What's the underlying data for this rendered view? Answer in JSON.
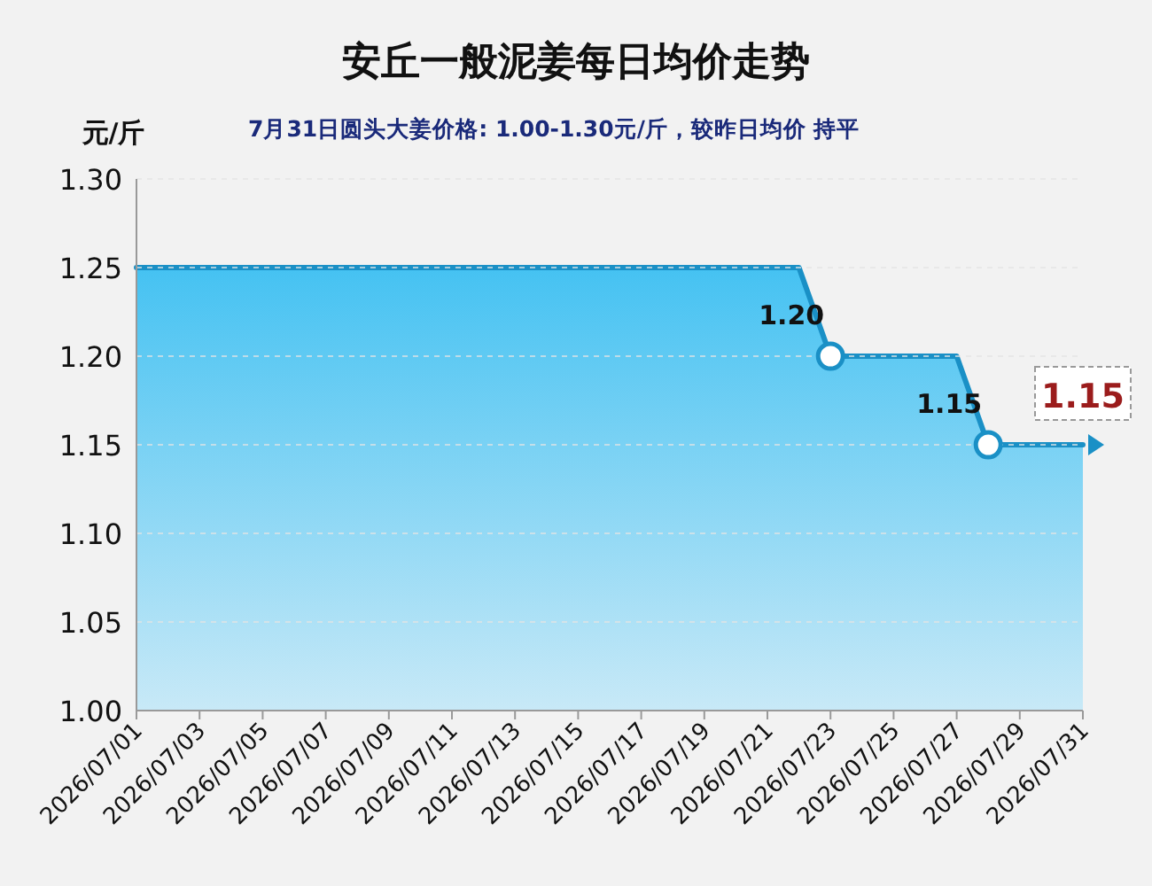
{
  "chart_data": {
    "type": "area",
    "title": "安丘一般泥姜每日均价走势",
    "subtitle": "7月31日圆头大姜价格: 1.00-1.30元/斤，较昨日均价 持平",
    "ylabel": "元/斤",
    "x": [
      "2026-07-01",
      "2026-07-02",
      "2026-07-03",
      "2026-07-04",
      "2026-07-05",
      "2026-07-06",
      "2026-07-07",
      "2026-07-08",
      "2026-07-09",
      "2026-07-10",
      "2026-07-11",
      "2026-07-12",
      "2026-07-13",
      "2026-07-14",
      "2026-07-15",
      "2026-07-16",
      "2026-07-17",
      "2026-07-18",
      "2026-07-19",
      "2026-07-20",
      "2026-07-21",
      "2026-07-22",
      "2026-07-23",
      "2026-07-24",
      "2026-07-25",
      "2026-07-26",
      "2026-07-27",
      "2026-07-28",
      "2026-07-29",
      "2026-07-30",
      "2026-07-31"
    ],
    "series": [
      {
        "color": "#1a90c6",
        "marker": "none",
        "line_style": "solid",
        "values": [
          1.25,
          1.25,
          1.25,
          1.25,
          1.25,
          1.25,
          1.25,
          1.25,
          1.25,
          1.25,
          1.25,
          1.25,
          1.25,
          1.25,
          1.25,
          1.25,
          1.25,
          1.25,
          1.25,
          1.25,
          1.25,
          1.25,
          1.2,
          1.2,
          1.2,
          1.2,
          1.2,
          1.15,
          1.15,
          1.15,
          1.15
        ]
      },
      {
        "type": "scatter",
        "color": "#1a90c6",
        "marker": "circle",
        "x": [
          "2026-07-23",
          "2026-07-28"
        ],
        "values": [
          1.2,
          1.15
        ],
        "value_labels": [
          "1.20",
          "1.15"
        ]
      }
    ],
    "annotations": [
      {
        "text": "1.15",
        "x": "2026-07-31",
        "y": 1.15
      }
    ],
    "grid": "y",
    "xlim": [
      "2026-07-01",
      "2026-07-31"
    ],
    "xticks": [
      {
        "value": "2026-07-01",
        "label": "2026/07/01"
      },
      {
        "value": "2026-07-03",
        "label": "2026/07/03"
      },
      {
        "value": "2026-07-05",
        "label": "2026/07/05"
      },
      {
        "value": "2026-07-07",
        "label": "2026/07/07"
      },
      {
        "value": "2026-07-09",
        "label": "2026/07/09"
      },
      {
        "value": "2026-07-11",
        "label": "2026/07/11"
      },
      {
        "value": "2026-07-13",
        "label": "2026/07/13"
      },
      {
        "value": "2026-07-15",
        "label": "2026/07/15"
      },
      {
        "value": "2026-07-17",
        "label": "2026/07/17"
      },
      {
        "value": "2026-07-19",
        "label": "2026/07/19"
      },
      {
        "value": "2026-07-21",
        "label": "2026/07/21"
      },
      {
        "value": "2026-07-23",
        "label": "2026/07/23"
      },
      {
        "value": "2026-07-25",
        "label": "2026/07/25"
      },
      {
        "value": "2026-07-27",
        "label": "2026/07/27"
      },
      {
        "value": "2026-07-29",
        "label": "2026/07/29"
      },
      {
        "value": "2026-07-31",
        "label": "2026/07/31"
      }
    ],
    "ylim": [
      1.0,
      1.3
    ],
    "yticks": [
      "1.00",
      "1.05",
      "1.10",
      "1.15",
      "1.20",
      "1.25",
      "1.30"
    ]
  }
}
